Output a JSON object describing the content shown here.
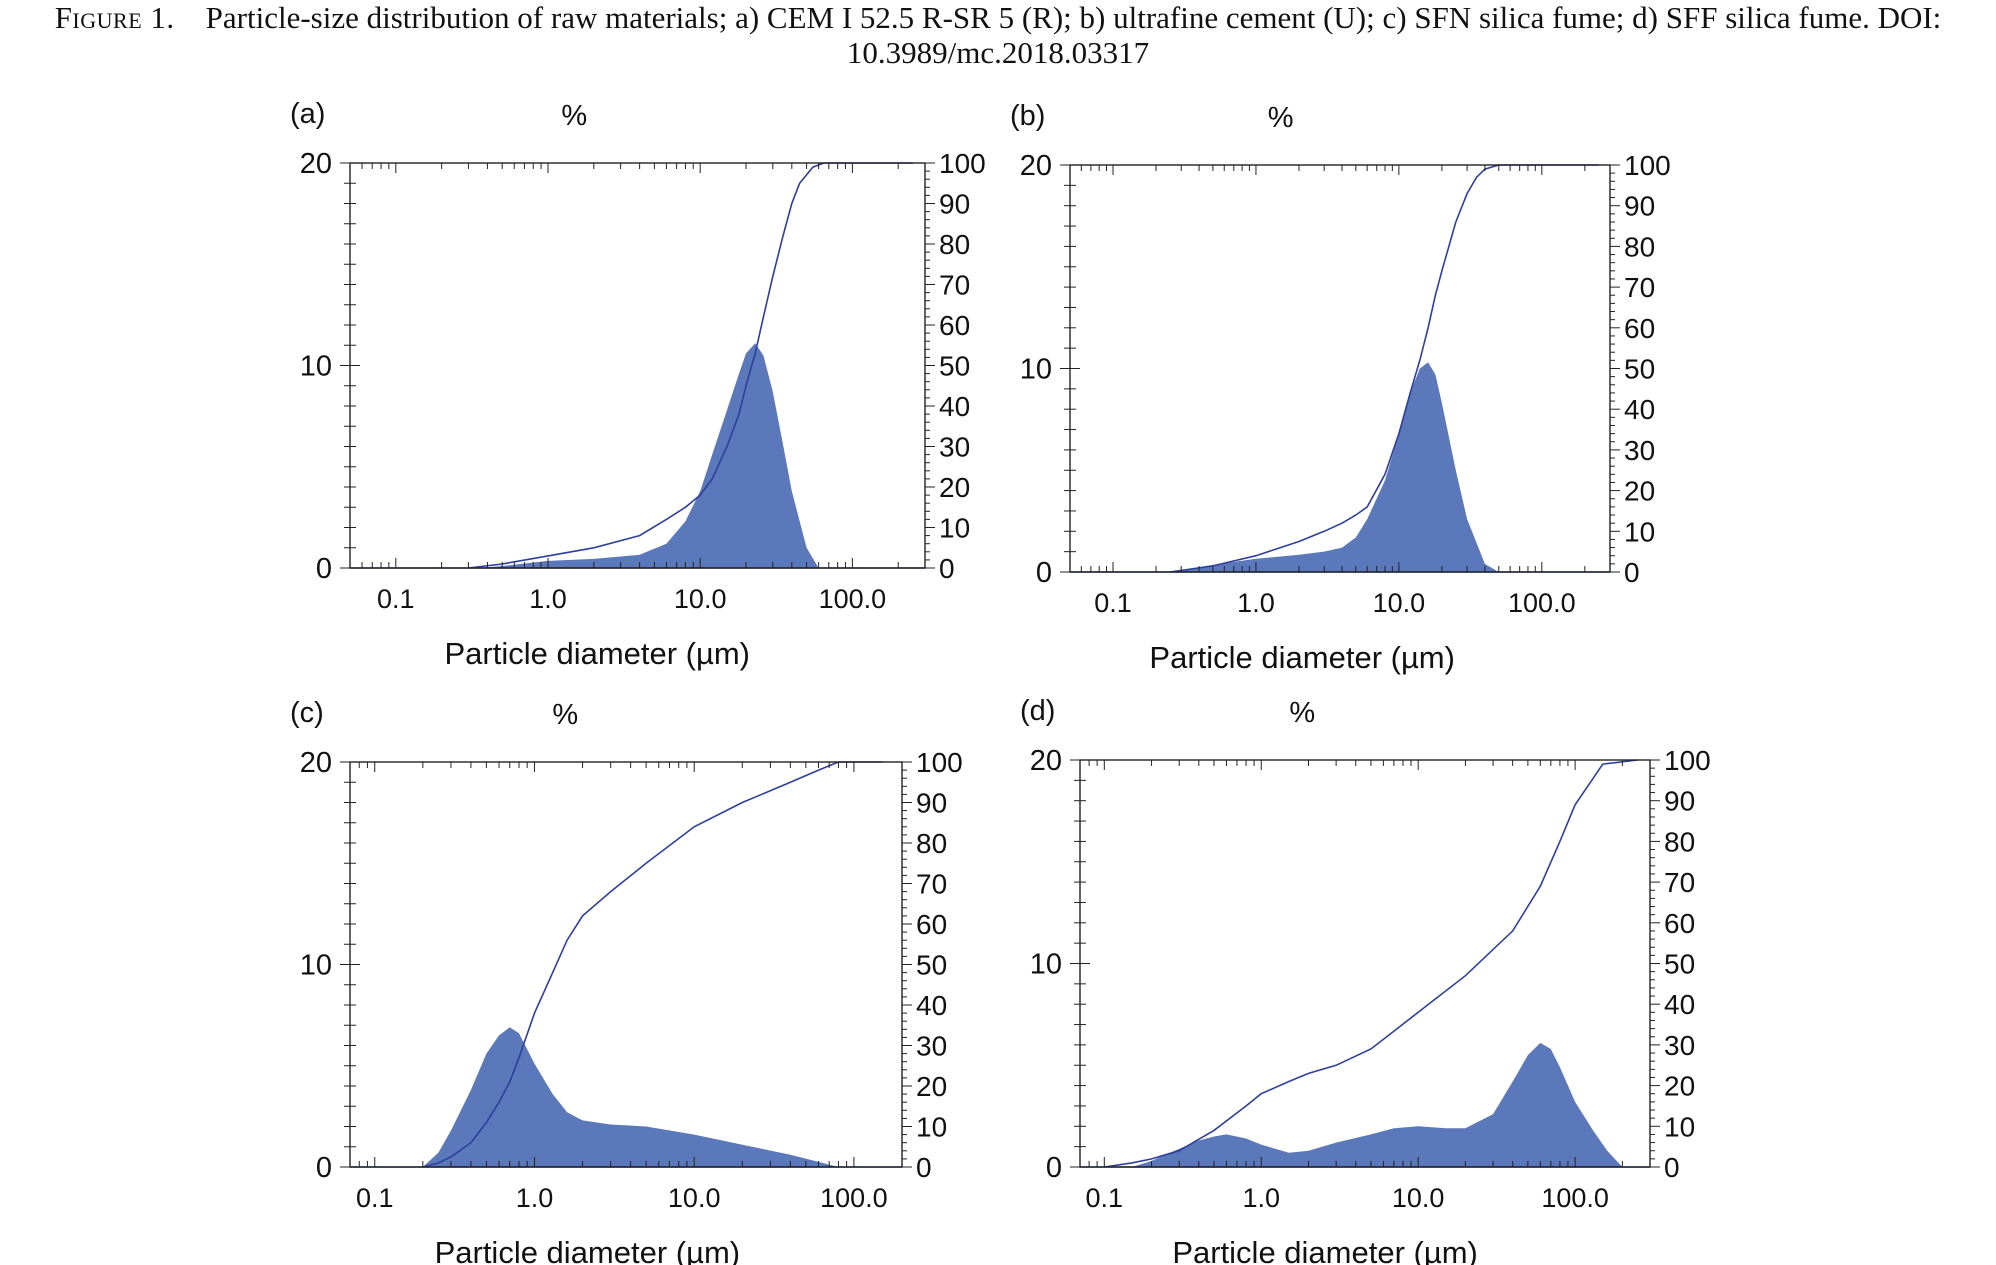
{
  "caption": {
    "figure_label": "Figure 1.",
    "text": "Particle-size distribution of raw materials; a) CEM I 52.5 R-SR 5 (R); b) ultrafine cement (U); c) SFN silica fume; d) SFF silica fume. DOI: 10.3989/mc.2018.03317"
  },
  "colors": {
    "fill": "#5a78ba",
    "line": "#2e3f9c",
    "axis": "#222222"
  },
  "chart_data": [
    {
      "type": "area",
      "panel_label": "(a)",
      "title": "%",
      "xlabel": "Particle diameter (µm)",
      "xscale": "log",
      "xlim": [
        0.05,
        300
      ],
      "xticks": [
        0.1,
        1.0,
        10.0,
        100.0
      ],
      "xtick_labels": [
        "0.1",
        "1.0",
        "10.0",
        "100.0"
      ],
      "ylim": [
        0,
        20
      ],
      "yticks": [
        0,
        10,
        20
      ],
      "y2lim": [
        0,
        100
      ],
      "y2ticks": [
        0,
        10,
        20,
        30,
        40,
        50,
        60,
        70,
        80,
        90,
        100
      ],
      "series": [
        {
          "type": "area",
          "axis": "left",
          "x": [
            0.35,
            0.5,
            1,
            2,
            4,
            6,
            8,
            10,
            12,
            15,
            18,
            20,
            23,
            26,
            30,
            35,
            40,
            50,
            60
          ],
          "y": [
            0,
            0.1,
            0.35,
            0.45,
            0.65,
            1.2,
            2.3,
            3.8,
            5.6,
            7.8,
            9.6,
            10.6,
            11.1,
            10.5,
            8.7,
            6.1,
            3.8,
            1.0,
            0
          ]
        },
        {
          "type": "line",
          "axis": "right",
          "x": [
            0.3,
            0.5,
            1,
            2,
            4,
            6,
            8,
            10,
            12,
            15,
            18,
            20,
            23,
            26,
            30,
            35,
            40,
            45,
            55,
            65,
            250
          ],
          "y": [
            0,
            1,
            3,
            5,
            8,
            12,
            15,
            18,
            22,
            30,
            38,
            45,
            53,
            62,
            72,
            82,
            90,
            95,
            99,
            100,
            100
          ]
        }
      ]
    },
    {
      "type": "area",
      "panel_label": "(b)",
      "title": "%",
      "xlabel": "Particle diameter (µm)",
      "xscale": "log",
      "xlim": [
        0.05,
        300
      ],
      "xticks": [
        0.1,
        1.0,
        10.0,
        100.0
      ],
      "xtick_labels": [
        "0.1",
        "1.0",
        "10.0",
        "100.0"
      ],
      "ylim": [
        0,
        20
      ],
      "yticks": [
        0,
        10,
        20
      ],
      "y2lim": [
        0,
        100
      ],
      "y2ticks": [
        0,
        10,
        20,
        30,
        40,
        50,
        60,
        70,
        80,
        90,
        100
      ],
      "series": [
        {
          "type": "area",
          "axis": "left",
          "x": [
            0.25,
            0.5,
            1,
            2,
            3,
            4,
            5,
            6,
            8,
            10,
            12,
            14,
            16,
            18,
            20,
            25,
            30,
            40,
            50
          ],
          "y": [
            0,
            0.35,
            0.65,
            0.85,
            1.0,
            1.2,
            1.7,
            2.6,
            4.5,
            6.8,
            8.8,
            10.0,
            10.3,
            9.7,
            8.3,
            5.0,
            2.6,
            0.4,
            0
          ]
        },
        {
          "type": "line",
          "axis": "right",
          "x": [
            0.25,
            0.5,
            1,
            2,
            3,
            4,
            5,
            6,
            8,
            10,
            12,
            14,
            16,
            18,
            20,
            25,
            30,
            35,
            40,
            50,
            250
          ],
          "y": [
            0,
            1.5,
            4,
            7.5,
            10,
            12,
            14,
            16,
            24,
            34,
            44,
            52,
            60,
            68,
            74,
            86,
            93,
            97,
            99,
            100,
            100
          ]
        }
      ]
    },
    {
      "type": "area",
      "panel_label": "(c)",
      "title": "%",
      "xlabel": "Particle diameter (µm)",
      "xscale": "log",
      "xlim": [
        0.07,
        200
      ],
      "xticks": [
        0.1,
        1.0,
        10.0,
        100.0
      ],
      "xtick_labels": [
        "0.1",
        "1.0",
        "10.0",
        "100.0"
      ],
      "ylim": [
        0,
        20
      ],
      "yticks": [
        0,
        10,
        20
      ],
      "y2lim": [
        0,
        100
      ],
      "y2ticks": [
        0,
        10,
        20,
        30,
        40,
        50,
        60,
        70,
        80,
        90,
        100
      ],
      "series": [
        {
          "type": "area",
          "axis": "left",
          "x": [
            0.2,
            0.25,
            0.3,
            0.4,
            0.5,
            0.6,
            0.7,
            0.8,
            1.0,
            1.3,
            1.6,
            2,
            3,
            5,
            10,
            20,
            40,
            60,
            80
          ],
          "y": [
            0,
            0.7,
            1.8,
            3.8,
            5.6,
            6.5,
            6.9,
            6.6,
            5.1,
            3.6,
            2.7,
            2.3,
            2.1,
            2.0,
            1.6,
            1.1,
            0.6,
            0.25,
            0
          ]
        },
        {
          "type": "line",
          "axis": "right",
          "x": [
            0.2,
            0.25,
            0.3,
            0.4,
            0.5,
            0.6,
            0.7,
            0.8,
            1.0,
            1.3,
            1.6,
            2,
            3,
            5,
            10,
            20,
            40,
            60,
            80,
            150
          ],
          "y": [
            0,
            1,
            2.5,
            6,
            11,
            16,
            21,
            27,
            38,
            48,
            56,
            62,
            68,
            75,
            84,
            90,
            95,
            98,
            100,
            100
          ]
        }
      ]
    },
    {
      "type": "area",
      "panel_label": "(d)",
      "title": "%",
      "xlabel": "Particle diameter (µm)",
      "xscale": "log",
      "xlim": [
        0.07,
        300
      ],
      "xticks": [
        0.1,
        1.0,
        10.0,
        100.0
      ],
      "xtick_labels": [
        "0.1",
        "1.0",
        "10.0",
        "100.0"
      ],
      "ylim": [
        0,
        20
      ],
      "yticks": [
        0,
        10,
        20
      ],
      "y2lim": [
        0,
        100
      ],
      "y2ticks": [
        0,
        10,
        20,
        30,
        40,
        50,
        60,
        70,
        80,
        90,
        100
      ],
      "series": [
        {
          "type": "area",
          "axis": "left",
          "x": [
            0.15,
            0.2,
            0.3,
            0.4,
            0.5,
            0.6,
            0.8,
            1.0,
            1.5,
            2,
            3,
            5,
            7,
            10,
            15,
            20,
            30,
            40,
            50,
            60,
            70,
            80,
            100,
            130,
            160,
            200
          ],
          "y": [
            0,
            0.3,
            0.9,
            1.3,
            1.5,
            1.6,
            1.4,
            1.1,
            0.7,
            0.8,
            1.2,
            1.6,
            1.9,
            2.0,
            1.9,
            1.9,
            2.6,
            4.2,
            5.5,
            6.1,
            5.8,
            4.9,
            3.2,
            1.8,
            0.8,
            0
          ]
        },
        {
          "type": "line",
          "axis": "right",
          "x": [
            0.1,
            0.15,
            0.2,
            0.3,
            0.5,
            0.8,
            1,
            1.5,
            2,
            3,
            5,
            10,
            20,
            40,
            60,
            80,
            100,
            150,
            250
          ],
          "y": [
            0,
            1,
            2,
            4,
            9,
            15,
            18,
            21,
            23,
            25,
            29,
            38,
            47,
            58,
            69,
            80,
            89,
            99,
            100
          ]
        }
      ]
    }
  ]
}
